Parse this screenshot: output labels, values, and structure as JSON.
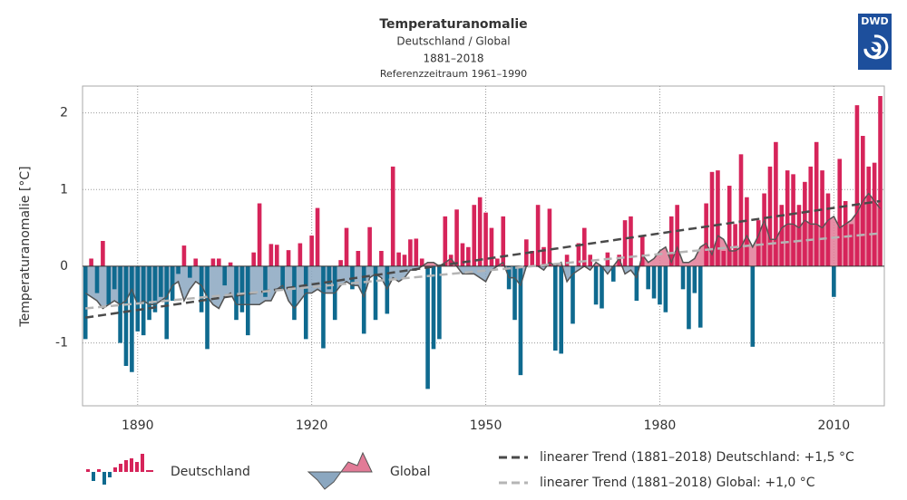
{
  "chart_data": {
    "type": "bar",
    "title": "Temperaturanomalie",
    "subtitle": [
      "Deutschland / Global",
      "1881–2018",
      "Referenzzeitraum 1961–1990"
    ],
    "logo": "DWD",
    "ylabel": "Temperaturanomalie [°C]",
    "xlim": [
      1880.5,
      2018.7
    ],
    "xticks": [
      1890,
      1920,
      1950,
      1980,
      2010
    ],
    "ylim": [
      -1.82,
      2.35
    ],
    "yticks": [
      -1,
      0,
      1,
      2
    ],
    "grid": true,
    "x": [
      1881,
      1882,
      1883,
      1884,
      1885,
      1886,
      1887,
      1888,
      1889,
      1890,
      1891,
      1892,
      1893,
      1894,
      1895,
      1896,
      1897,
      1898,
      1899,
      1900,
      1901,
      1902,
      1903,
      1904,
      1905,
      1906,
      1907,
      1908,
      1909,
      1910,
      1911,
      1912,
      1913,
      1914,
      1915,
      1916,
      1917,
      1918,
      1919,
      1920,
      1921,
      1922,
      1923,
      1924,
      1925,
      1926,
      1927,
      1928,
      1929,
      1930,
      1931,
      1932,
      1933,
      1934,
      1935,
      1936,
      1937,
      1938,
      1939,
      1940,
      1941,
      1942,
      1943,
      1944,
      1945,
      1946,
      1947,
      1948,
      1949,
      1950,
      1951,
      1952,
      1953,
      1954,
      1955,
      1956,
      1957,
      1958,
      1959,
      1960,
      1961,
      1962,
      1963,
      1964,
      1965,
      1966,
      1967,
      1968,
      1969,
      1970,
      1971,
      1972,
      1973,
      1974,
      1975,
      1976,
      1977,
      1978,
      1979,
      1980,
      1981,
      1982,
      1983,
      1984,
      1985,
      1986,
      1987,
      1988,
      1989,
      1990,
      1991,
      1992,
      1993,
      1994,
      1995,
      1996,
      1997,
      1998,
      1999,
      2000,
      2001,
      2002,
      2003,
      2004,
      2005,
      2006,
      2007,
      2008,
      2009,
      2010,
      2011,
      2012,
      2013,
      2014,
      2015,
      2016,
      2017,
      2018
    ],
    "series": [
      {
        "name": "Deutschland",
        "type": "bar",
        "color_positive": "#d6245a",
        "color_negative": "#0f6a8f",
        "values": [
          -0.95,
          0.1,
          -0.35,
          0.33,
          -0.5,
          -0.3,
          -1.0,
          -1.3,
          -1.38,
          -0.85,
          -0.9,
          -0.7,
          -0.6,
          -0.4,
          -0.95,
          -0.45,
          -0.1,
          0.27,
          -0.15,
          0.1,
          -0.6,
          -1.08,
          0.1,
          0.1,
          -0.25,
          0.05,
          -0.7,
          -0.6,
          -0.9,
          0.18,
          0.82,
          -0.4,
          0.29,
          0.28,
          -0.3,
          0.21,
          -0.7,
          0.3,
          -0.95,
          0.4,
          0.76,
          -1.07,
          -0.3,
          -0.7,
          0.08,
          0.5,
          -0.3,
          0.2,
          -0.88,
          0.51,
          -0.7,
          0.2,
          -0.62,
          1.3,
          0.18,
          0.15,
          0.35,
          0.36,
          0.1,
          -1.6,
          -1.08,
          -0.95,
          0.65,
          0.15,
          0.74,
          0.3,
          0.25,
          0.8,
          0.9,
          0.7,
          0.5,
          0.1,
          0.65,
          -0.3,
          -0.7,
          -1.42,
          0.35,
          0.2,
          0.8,
          0.25,
          0.75,
          -1.1,
          -1.14,
          0.15,
          -0.75,
          0.3,
          0.5,
          0.15,
          -0.5,
          -0.55,
          0.18,
          -0.2,
          0.15,
          0.6,
          0.65,
          -0.45,
          0.4,
          -0.3,
          -0.42,
          -0.5,
          -0.6,
          0.65,
          0.8,
          -0.3,
          -0.82,
          -0.35,
          -0.8,
          0.82,
          1.23,
          1.25,
          0.2,
          1.05,
          0.55,
          1.46,
          0.9,
          -1.05,
          0.6,
          0.95,
          1.3,
          1.62,
          0.8,
          1.25,
          1.2,
          0.8,
          1.1,
          1.3,
          1.62,
          1.25,
          0.95,
          -0.4,
          1.4,
          0.85,
          0.55,
          2.1,
          1.7,
          1.3,
          1.35,
          2.22
        ]
      },
      {
        "name": "Global",
        "type": "area",
        "color_positive": "#e27b97",
        "color_negative": "#8ba7c0",
        "line_color": "#555555",
        "values": [
          -0.35,
          -0.4,
          -0.45,
          -0.55,
          -0.5,
          -0.45,
          -0.5,
          -0.45,
          -0.3,
          -0.5,
          -0.45,
          -0.5,
          -0.5,
          -0.45,
          -0.4,
          -0.25,
          -0.2,
          -0.45,
          -0.3,
          -0.2,
          -0.25,
          -0.4,
          -0.5,
          -0.55,
          -0.4,
          -0.35,
          -0.5,
          -0.5,
          -0.5,
          -0.5,
          -0.5,
          -0.45,
          -0.45,
          -0.3,
          -0.25,
          -0.45,
          -0.55,
          -0.45,
          -0.35,
          -0.35,
          -0.3,
          -0.35,
          -0.35,
          -0.35,
          -0.25,
          -0.2,
          -0.25,
          -0.25,
          -0.4,
          -0.15,
          -0.1,
          -0.15,
          -0.3,
          -0.15,
          -0.2,
          -0.15,
          -0.05,
          -0.05,
          0.0,
          0.05,
          0.05,
          0.0,
          0.05,
          0.1,
          0.0,
          -0.1,
          -0.1,
          -0.1,
          -0.15,
          -0.2,
          -0.05,
          0.0,
          0.05,
          -0.15,
          -0.15,
          -0.25,
          0.0,
          0.0,
          0.0,
          -0.05,
          0.05,
          0.0,
          0.05,
          -0.2,
          -0.1,
          -0.05,
          0.0,
          -0.05,
          0.05,
          0.0,
          -0.1,
          0.0,
          0.1,
          -0.1,
          -0.05,
          -0.15,
          0.15,
          0.05,
          0.1,
          0.2,
          0.25,
          0.05,
          0.25,
          0.05,
          0.05,
          0.1,
          0.25,
          0.3,
          0.15,
          0.4,
          0.35,
          0.2,
          0.2,
          0.25,
          0.4,
          0.25,
          0.4,
          0.6,
          0.35,
          0.35,
          0.5,
          0.55,
          0.55,
          0.5,
          0.6,
          0.55,
          0.55,
          0.5,
          0.6,
          0.65,
          0.5,
          0.55,
          0.6,
          0.7,
          0.85,
          0.95,
          0.85,
          0.75
        ]
      }
    ],
    "trends": [
      {
        "name": "linearer Trend (1881–2018) Deutschland: +1,5 °C",
        "color": "#4a4a4a",
        "x": [
          1881,
          2018
        ],
        "values": [
          -0.67,
          0.85
        ]
      },
      {
        "name": "linearer Trend (1881–2018) Global: +1,0 °C",
        "color": "#b5b5b5",
        "x": [
          1881,
          2018
        ],
        "values": [
          -0.55,
          0.43
        ]
      }
    ]
  }
}
